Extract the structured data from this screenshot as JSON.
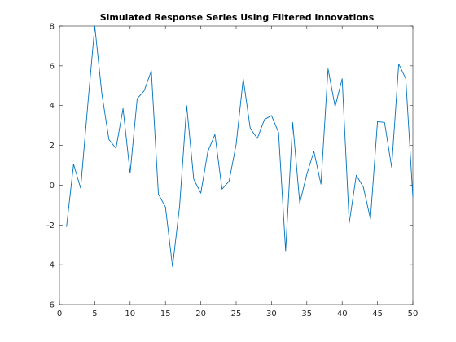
{
  "chart_data": {
    "type": "line",
    "title": "Simulated Response Series Using Filtered Innovations",
    "xlabel": "",
    "ylabel": "",
    "xlim": [
      0,
      50
    ],
    "ylim": [
      -6,
      8
    ],
    "xticks": [
      0,
      5,
      10,
      15,
      20,
      25,
      30,
      35,
      40,
      45,
      50
    ],
    "yticks": [
      -6,
      -4,
      -2,
      0,
      2,
      4,
      6,
      8
    ],
    "grid": false,
    "legend": "none",
    "series": [
      {
        "color": "#0072BD",
        "x": [
          1,
          2,
          3,
          4,
          5,
          6,
          7,
          8,
          9,
          10,
          11,
          12,
          13,
          14,
          15,
          16,
          17,
          18,
          19,
          20,
          21,
          22,
          23,
          24,
          25,
          26,
          27,
          28,
          29,
          30,
          31,
          32,
          33,
          34,
          35,
          36,
          37,
          38,
          39,
          40,
          41,
          42,
          43,
          44,
          45,
          46,
          47,
          48,
          49,
          50
        ],
        "y": [
          -2.1,
          1.05,
          -0.15,
          4.0,
          8.0,
          4.6,
          2.3,
          1.85,
          3.85,
          0.6,
          4.35,
          4.75,
          5.75,
          -0.45,
          -1.1,
          -4.1,
          -1.05,
          4.0,
          0.3,
          -0.4,
          1.7,
          2.55,
          -0.2,
          0.2,
          2.05,
          5.35,
          2.85,
          2.35,
          3.3,
          3.5,
          2.65,
          -3.3,
          3.15,
          -0.9,
          0.55,
          1.7,
          0.05,
          5.85,
          3.95,
          5.35,
          -1.9,
          0.5,
          -0.1,
          -1.7,
          3.2,
          3.15,
          0.9,
          6.1,
          5.35,
          -0.6
        ]
      }
    ]
  }
}
